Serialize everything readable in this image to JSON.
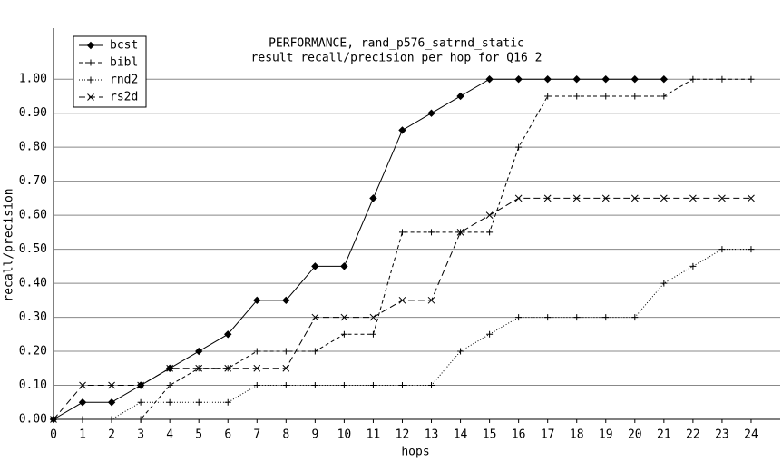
{
  "chart_data": {
    "type": "line",
    "title": "PERFORMANCE, rand_p576_satrnd_static",
    "subtitle": "result recall/precision per hop for Q16_2",
    "x_label": "hops",
    "y_label": "recall/precision",
    "x": [
      0,
      1,
      2,
      3,
      4,
      5,
      6,
      7,
      8,
      9,
      10,
      11,
      12,
      13,
      14,
      15,
      16,
      17,
      18,
      19,
      20,
      21,
      22,
      23,
      24
    ],
    "xlim": [
      0,
      25
    ],
    "xticks": [
      0,
      1,
      2,
      3,
      4,
      5,
      6,
      7,
      8,
      9,
      10,
      11,
      12,
      13,
      14,
      15,
      16,
      17,
      18,
      19,
      20,
      21,
      22,
      23,
      24
    ],
    "ylim": [
      0,
      1.15
    ],
    "yticks": [
      {
        "value": 0,
        "label": "0.00"
      },
      {
        "value": 0.1,
        "label": "0.10"
      },
      {
        "value": 0.2,
        "label": "0.20"
      },
      {
        "value": 0.3,
        "label": "0.30"
      },
      {
        "value": 0.4,
        "label": "0.40"
      },
      {
        "value": 0.5,
        "label": "0.50"
      },
      {
        "value": 0.6,
        "label": "0.60"
      },
      {
        "value": 0.7,
        "label": "0.70"
      },
      {
        "value": 0.8,
        "label": "0.80"
      },
      {
        "value": 0.9,
        "label": "0.90"
      },
      {
        "value": 1.0,
        "label": "1.00"
      }
    ],
    "grid": true,
    "legend": "top-left",
    "series": [
      {
        "name": "bcst",
        "color": "#000000",
        "dash": "solid",
        "marker": "diamond",
        "values": [
          0,
          0.05,
          0.05,
          0.1,
          0.15,
          0.2,
          0.25,
          0.35,
          0.35,
          0.45,
          0.45,
          0.65,
          0.85,
          0.9,
          0.95,
          1.0,
          1.0,
          1.0,
          1.0,
          1.0,
          1.0,
          1.0,
          null,
          null,
          null
        ]
      },
      {
        "name": "bibl",
        "color": "#000000",
        "dash": "dashed",
        "marker": "plus",
        "values": [
          0,
          0,
          0,
          0,
          0.1,
          0.15,
          0.15,
          0.2,
          0.2,
          0.2,
          0.25,
          0.25,
          0.55,
          0.55,
          0.55,
          0.55,
          0.8,
          0.95,
          0.95,
          0.95,
          0.95,
          0.95,
          1.0,
          1.0,
          1.0
        ]
      },
      {
        "name": "rnd2",
        "color": "#000000",
        "dash": "dotted",
        "marker": "plus",
        "values": [
          0,
          0,
          0,
          0.05,
          0.05,
          0.05,
          0.05,
          0.1,
          0.1,
          0.1,
          0.1,
          0.1,
          0.1,
          0.1,
          0.2,
          0.25,
          0.3,
          0.3,
          0.3,
          0.3,
          0.3,
          0.4,
          0.45,
          0.5,
          0.5
        ]
      },
      {
        "name": "rs2d",
        "color": "#000000",
        "dash": "longdash",
        "marker": "x",
        "values": [
          0,
          0.1,
          0.1,
          0.1,
          0.15,
          0.15,
          0.15,
          0.15,
          0.15,
          0.3,
          0.3,
          0.3,
          0.35,
          0.35,
          0.55,
          0.6,
          0.65,
          0.65,
          0.65,
          0.65,
          0.65,
          0.65,
          0.65,
          0.65,
          0.65
        ]
      }
    ]
  }
}
